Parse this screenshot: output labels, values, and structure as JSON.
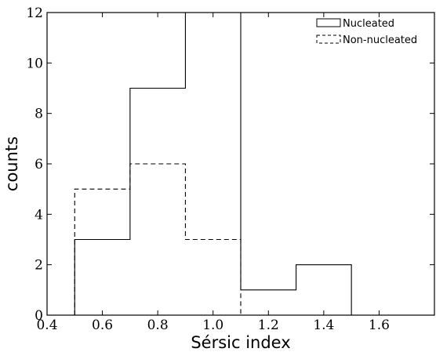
{
  "chart_data": {
    "type": "histogram",
    "title": "",
    "xlabel": "Sérsic index",
    "ylabel": "counts",
    "xlim": [
      0.4,
      1.8
    ],
    "ylim": [
      0,
      12
    ],
    "xticks": [
      0.4,
      0.6,
      0.8,
      1.0,
      1.2,
      1.4,
      1.6
    ],
    "xtick_labels": [
      "0.4",
      "0.6",
      "0.8",
      "1.0",
      "1.2",
      "1.4",
      "1.6"
    ],
    "yticks": [
      0,
      2,
      4,
      6,
      8,
      10,
      12
    ],
    "ytick_labels": [
      "0",
      "2",
      "4",
      "6",
      "8",
      "10",
      "12"
    ],
    "bin_edges": [
      0.5,
      0.7,
      0.9,
      1.1,
      1.3,
      1.5,
      1.7
    ],
    "series": [
      {
        "name": "Nucleated",
        "values": [
          3,
          9,
          12,
          1,
          2,
          0
        ],
        "style": "solid"
      },
      {
        "name": "Non-nucleated",
        "values": [
          5,
          6,
          3,
          0,
          0,
          0
        ],
        "style": "dashed"
      }
    ],
    "legend_position": "top-right",
    "grid": false
  }
}
